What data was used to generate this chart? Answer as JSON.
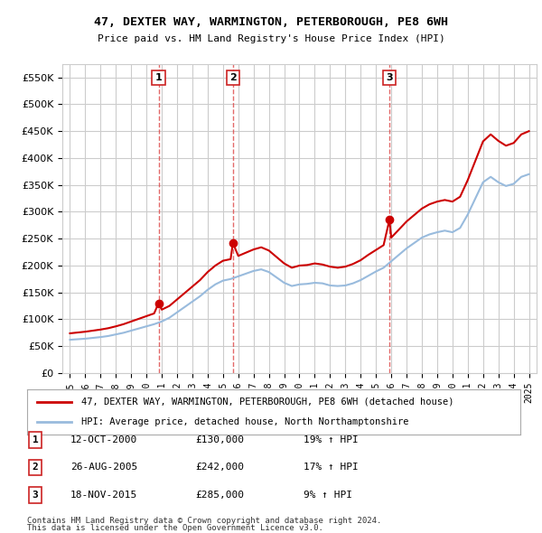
{
  "title": "47, DEXTER WAY, WARMINGTON, PETERBOROUGH, PE8 6WH",
  "subtitle": "Price paid vs. HM Land Registry's House Price Index (HPI)",
  "legend_line1": "47, DEXTER WAY, WARMINGTON, PETERBOROUGH, PE8 6WH (detached house)",
  "legend_line2": "HPI: Average price, detached house, North Northamptonshire",
  "footer1": "Contains HM Land Registry data © Crown copyright and database right 2024.",
  "footer2": "This data is licensed under the Open Government Licence v3.0.",
  "sales": [
    {
      "num": 1,
      "date": "12-OCT-2000",
      "price": 130000,
      "pct": "19%",
      "direction": "↑",
      "x": 2000.79
    },
    {
      "num": 2,
      "date": "26-AUG-2005",
      "price": 242000,
      "pct": "17%",
      "direction": "↑",
      "x": 2005.65
    },
    {
      "num": 3,
      "date": "18-NOV-2015",
      "price": 285000,
      "pct": "9%",
      "direction": "↑",
      "x": 2015.88
    }
  ],
  "hpi_x": [
    1995,
    1995.5,
    1996,
    1996.5,
    1997,
    1997.5,
    1998,
    1998.5,
    1999,
    1999.5,
    2000,
    2000.5,
    2001,
    2001.5,
    2002,
    2002.5,
    2003,
    2003.5,
    2004,
    2004.5,
    2005,
    2005.5,
    2006,
    2006.5,
    2007,
    2007.5,
    2008,
    2008.5,
    2009,
    2009.5,
    2010,
    2010.5,
    2011,
    2011.5,
    2012,
    2012.5,
    2013,
    2013.5,
    2014,
    2014.5,
    2015,
    2015.5,
    2016,
    2016.5,
    2017,
    2017.5,
    2018,
    2018.5,
    2019,
    2019.5,
    2020,
    2020.5,
    2021,
    2021.5,
    2022,
    2022.5,
    2023,
    2023.5,
    2024,
    2024.5,
    2025
  ],
  "hpi_y": [
    62000,
    63000,
    64000,
    65500,
    67000,
    69000,
    72000,
    75000,
    79000,
    83000,
    87000,
    91000,
    96000,
    103000,
    113000,
    123000,
    133000,
    143000,
    155000,
    165000,
    172000,
    175000,
    180000,
    185000,
    190000,
    193000,
    188000,
    178000,
    168000,
    162000,
    165000,
    166000,
    168000,
    167000,
    163000,
    162000,
    163000,
    167000,
    173000,
    181000,
    189000,
    196000,
    208000,
    220000,
    232000,
    242000,
    252000,
    258000,
    262000,
    265000,
    262000,
    270000,
    295000,
    325000,
    355000,
    365000,
    355000,
    348000,
    352000,
    365000,
    370000
  ],
  "red_x": [
    1995,
    1995.5,
    1996,
    1996.5,
    1997,
    1997.5,
    1998,
    1998.5,
    1999,
    1999.5,
    2000,
    2000.5,
    2000.79,
    2000.79,
    2001,
    2001.5,
    2002,
    2002.5,
    2003,
    2003.5,
    2004,
    2004.5,
    2005,
    2005.5,
    2005.65,
    2005.65,
    2006,
    2006.5,
    2007,
    2007.5,
    2008,
    2008.5,
    2009,
    2009.5,
    2010,
    2010.5,
    2011,
    2011.5,
    2012,
    2012.5,
    2013,
    2013.5,
    2014,
    2014.5,
    2015,
    2015.5,
    2015.88,
    2015.88,
    2016,
    2016.5,
    2017,
    2017.5,
    2018,
    2018.5,
    2019,
    2019.5,
    2020,
    2020.5,
    2021,
    2021.5,
    2022,
    2022.5,
    2023,
    2023.5,
    2024,
    2024.5,
    2025
  ],
  "red_y": [
    74000,
    75500,
    77000,
    79000,
    81000,
    83500,
    87000,
    91000,
    96000,
    101000,
    106000,
    111000,
    130000,
    130000,
    118000,
    125000,
    137000,
    149000,
    161000,
    173000,
    188000,
    200000,
    209000,
    212000,
    242000,
    242000,
    218000,
    224000,
    230000,
    234000,
    228000,
    216000,
    204000,
    196000,
    200000,
    201000,
    204000,
    202000,
    198000,
    196000,
    198000,
    203000,
    210000,
    220000,
    229000,
    238000,
    285000,
    285000,
    252000,
    267000,
    282000,
    294000,
    306000,
    314000,
    319000,
    322000,
    319000,
    328000,
    359000,
    395000,
    431000,
    444000,
    432000,
    423000,
    428000,
    444000,
    450000
  ],
  "ylim": [
    0,
    575000
  ],
  "xlim": [
    1994.5,
    2025.5
  ],
  "yticks": [
    0,
    50000,
    100000,
    150000,
    200000,
    250000,
    300000,
    350000,
    400000,
    450000,
    500000,
    550000
  ],
  "xticks": [
    1995,
    1996,
    1997,
    1998,
    1999,
    2000,
    2001,
    2002,
    2003,
    2004,
    2005,
    2006,
    2007,
    2008,
    2009,
    2010,
    2011,
    2012,
    2013,
    2014,
    2015,
    2016,
    2017,
    2018,
    2019,
    2020,
    2021,
    2022,
    2023,
    2024,
    2025
  ],
  "red_color": "#cc0000",
  "blue_color": "#99bbdd",
  "vline_color": "#dd4444",
  "grid_color": "#cccccc",
  "bg_color": "#ffffff",
  "marker_box_color": "#cc2222"
}
